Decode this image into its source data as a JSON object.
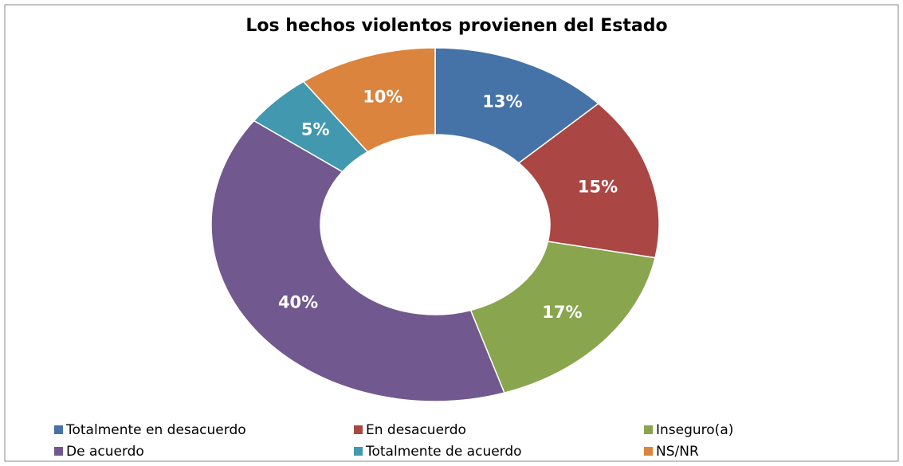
{
  "chart_data": {
    "type": "pie",
    "title": "Los hechos violentos provienen del Estado",
    "categories": [
      "Totalmente en desacuerdo",
      "En desacuerdo",
      "Inseguro(a)",
      "De acuerdo",
      "Totalmente de acuerdo",
      "NS/NR"
    ],
    "values": [
      13,
      15,
      17,
      40,
      5,
      10
    ],
    "value_labels": [
      "13%",
      "15%",
      "17%",
      "40%",
      "5%",
      "10%"
    ],
    "colors": [
      "#4572a7",
      "#aa4643",
      "#89a54e",
      "#71588f",
      "#4198af",
      "#db843d"
    ],
    "legend": "bottom"
  }
}
